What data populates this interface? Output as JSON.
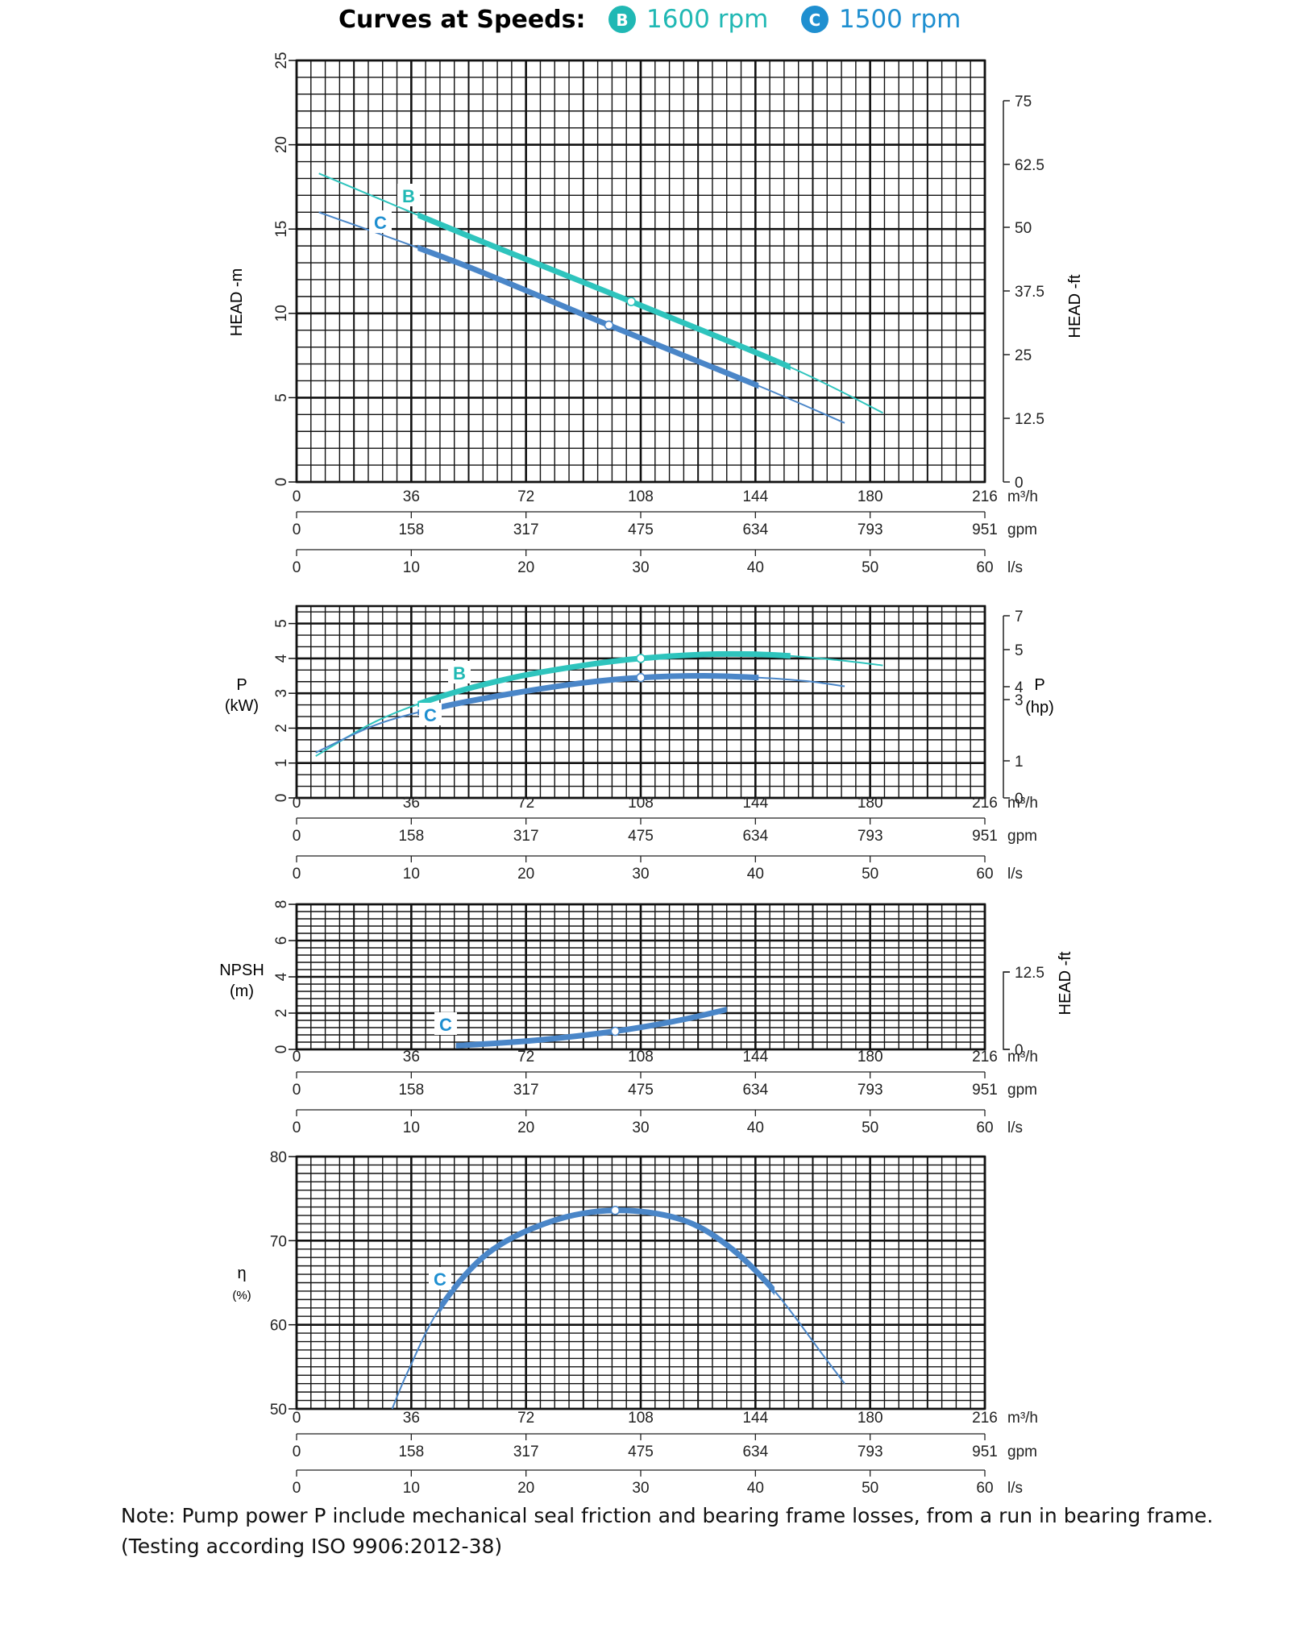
{
  "header": {
    "title": "Curves at Speeds:",
    "speeds": [
      {
        "badge": "B",
        "label": "1600 rpm",
        "color": "#20b8b4"
      },
      {
        "badge": "C",
        "label": "1500 rpm",
        "color": "#1f8fd0"
      }
    ]
  },
  "axes": {
    "flow_m3h": [
      "0",
      "36",
      "72",
      "108",
      "144",
      "180"
    ],
    "flow_m3h_unit": "216 m³/h",
    "flow_gpm": [
      "0",
      "158",
      "317",
      "475",
      "634",
      "793"
    ],
    "flow_gpm_unit": "951 gpm",
    "flow_ls": [
      "0",
      "10",
      "20",
      "30",
      "40",
      "50"
    ],
    "flow_ls_unit": "60 l/s"
  },
  "colors": {
    "curve_b": "#2ec4bd",
    "curve_c": "#4a86c8",
    "grid": "#111111"
  },
  "chart_data": [
    {
      "type": "line",
      "ylabel": "HEAD -m",
      "ylabel_right": "HEAD -ft",
      "ylim": [
        0,
        25
      ],
      "yticks": [
        "0",
        "5",
        "10",
        "15",
        "20",
        "25"
      ],
      "yticks_right": [
        "0",
        "12.5",
        "25",
        "37.5",
        "50",
        "62.5",
        "75"
      ],
      "xlim": [
        0,
        216
      ],
      "series": [
        {
          "name": "B",
          "x": [
            7,
            55,
            105,
            155,
            184
          ],
          "y": [
            18.3,
            14.5,
            10.7,
            6.8,
            4.1
          ]
        },
        {
          "name": "C",
          "x": [
            7,
            52,
            98,
            145,
            172
          ],
          "y": [
            16.0,
            12.9,
            9.3,
            5.7,
            3.5
          ]
        }
      ]
    },
    {
      "type": "line",
      "ylabel": "P (kW)",
      "ylabel_right": "P (hp)",
      "ylim": [
        0,
        5.5
      ],
      "yticks": [
        "0",
        "1",
        "2",
        "3",
        "4",
        "5"
      ],
      "yticks_right": [
        "0",
        "1",
        "3",
        "4",
        "5",
        "7"
      ],
      "xlim": [
        0,
        216
      ],
      "series": [
        {
          "name": "B",
          "x": [
            6,
            25,
            45,
            68,
            90,
            108,
            130,
            150,
            170,
            184
          ],
          "y": [
            1.2,
            2.2,
            2.9,
            3.45,
            3.8,
            4.0,
            4.12,
            4.1,
            3.95,
            3.8
          ]
        },
        {
          "name": "C",
          "x": [
            6,
            25,
            45,
            68,
            90,
            108,
            128,
            145,
            160,
            172
          ],
          "y": [
            1.3,
            2.1,
            2.6,
            3.0,
            3.3,
            3.45,
            3.5,
            3.45,
            3.35,
            3.2
          ]
        }
      ]
    },
    {
      "type": "line",
      "ylabel": "NPSH (m)",
      "ylabel_right": "HEAD -ft",
      "ylim": [
        0,
        8
      ],
      "yticks": [
        "0",
        "2",
        "4",
        "6",
        "8"
      ],
      "yticks_right": [
        "0",
        "12.5"
      ],
      "xlim": [
        0,
        216
      ],
      "series": [
        {
          "name": "C",
          "x": [
            50,
            75,
            100,
            120,
            135
          ],
          "y": [
            0.2,
            0.5,
            1.0,
            1.6,
            2.2
          ]
        }
      ]
    },
    {
      "type": "line",
      "ylabel": "η (%)",
      "ylim": [
        50,
        80
      ],
      "yticks": [
        "50",
        "60",
        "70",
        "80"
      ],
      "xlim": [
        0,
        216
      ],
      "series": [
        {
          "name": "C",
          "x": [
            30,
            35,
            45,
            60,
            80,
            100,
            120,
            135,
            150,
            165,
            172
          ],
          "y": [
            50,
            54.5,
            62,
            68.5,
            72.3,
            73.6,
            72.6,
            69.5,
            64,
            56.5,
            53
          ]
        }
      ]
    }
  ],
  "note": {
    "line1": "Note: Pump power P include mechanical seal friction and bearing frame losses, from a run in bearing frame.",
    "line2": "(Testing according ISO 9906:2012-38)"
  }
}
